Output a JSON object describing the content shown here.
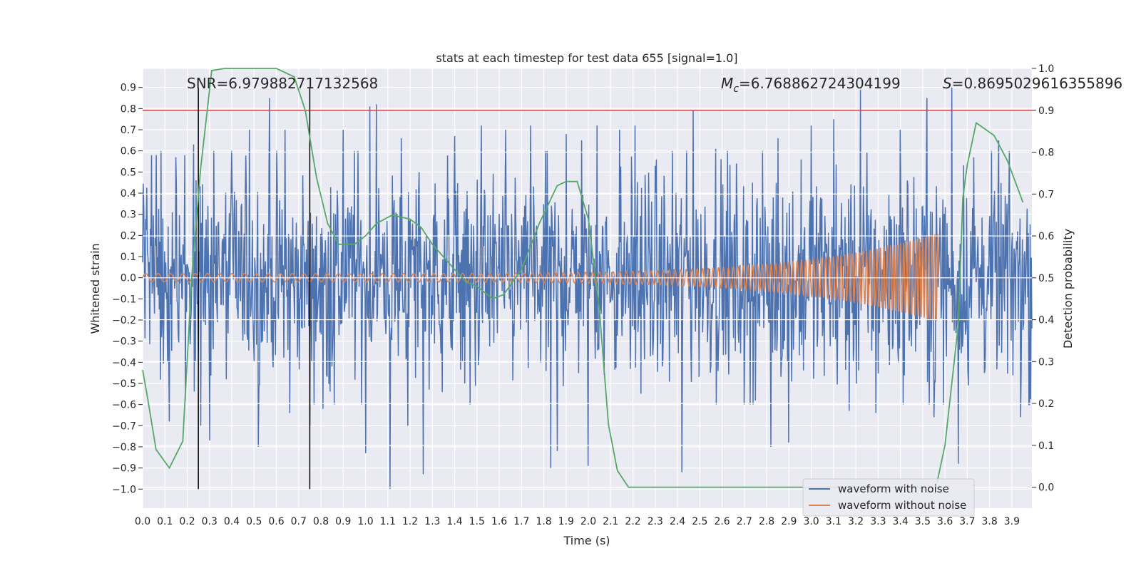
{
  "chart_data": {
    "type": "line",
    "title": "stats at each timestep for test data 655 [signal=1.0]",
    "xlabel": "Time (s)",
    "ylabel": "Whitened strain",
    "y2label": "Detection probability",
    "xlim": [
      0.0,
      3.99
    ],
    "ylim": [
      -1.09,
      0.99
    ],
    "y2lim": [
      -0.05,
      1.0
    ],
    "xticks": [
      "0.0",
      "0.1",
      "0.2",
      "0.3",
      "0.4",
      "0.5",
      "0.6",
      "0.7",
      "0.8",
      "0.9",
      "1.0",
      "1.1",
      "1.2",
      "1.3",
      "1.4",
      "1.5",
      "1.6",
      "1.7",
      "1.8",
      "1.9",
      "2.0",
      "2.1",
      "2.2",
      "2.3",
      "2.4",
      "2.5",
      "2.6",
      "2.7",
      "2.8",
      "2.9",
      "3.0",
      "3.1",
      "3.2",
      "3.3",
      "3.4",
      "3.5",
      "3.6",
      "3.7",
      "3.8",
      "3.9"
    ],
    "yticks": [
      "0.9",
      "0.8",
      "0.7",
      "0.6",
      "0.5",
      "0.4",
      "0.3",
      "0.2",
      "0.1",
      "0.0",
      "−0.1",
      "−0.2",
      "−0.3",
      "−0.4",
      "−0.5",
      "−0.6",
      "−0.7",
      "−0.8",
      "−0.9",
      "−1.0"
    ],
    "y2ticks": [
      "1.0",
      "0.9",
      "0.8",
      "0.7",
      "0.6",
      "0.5",
      "0.4",
      "0.3",
      "0.2",
      "0.1",
      "0.0"
    ],
    "annotations": {
      "snr": "SNR=6.979882717132568",
      "mc_symbol": "M",
      "mc_sub": "c",
      "mc_value": "=6.768862724304199",
      "s_symbol": "S",
      "s_value": "=0.8695029616355896"
    },
    "threshold": {
      "value": 0.9,
      "axis": "y2",
      "color": "#c44e52"
    },
    "vlines": [
      0.25,
      0.75
    ],
    "series": [
      {
        "name": "waveform with noise",
        "color": "#4c72b0",
        "kind": "noise",
        "spread": 0.25,
        "peaks": [
          [
            0.04,
            0.58
          ],
          [
            0.06,
            0.58
          ],
          [
            0.12,
            -0.68
          ],
          [
            0.15,
            0.57
          ],
          [
            0.19,
            0.58
          ],
          [
            0.23,
            0.63
          ],
          [
            0.26,
            -0.7
          ],
          [
            0.3,
            -0.77
          ],
          [
            0.32,
            0.6
          ],
          [
            0.4,
            0.6
          ],
          [
            0.48,
            0.7
          ],
          [
            0.52,
            -0.8
          ],
          [
            0.57,
            0.85
          ],
          [
            0.64,
            0.7
          ],
          [
            0.66,
            -0.64
          ],
          [
            0.75,
            -0.7
          ],
          [
            0.81,
            -0.62
          ],
          [
            0.86,
            -0.6
          ],
          [
            0.9,
            0.7
          ],
          [
            0.95,
            0.6
          ],
          [
            1.0,
            -0.83
          ],
          [
            1.02,
            0.81
          ],
          [
            1.05,
            0.82
          ],
          [
            1.11,
            -1.0
          ],
          [
            1.16,
            0.66
          ],
          [
            1.19,
            -0.7
          ],
          [
            1.24,
            0.5
          ],
          [
            1.26,
            -0.93
          ],
          [
            1.4,
            0.67
          ],
          [
            1.47,
            -0.6
          ],
          [
            1.52,
            0.72
          ],
          [
            1.63,
            0.7
          ],
          [
            1.74,
            0.72
          ],
          [
            1.83,
            -0.9
          ],
          [
            1.86,
            -0.82
          ],
          [
            1.9,
            0.68
          ],
          [
            1.97,
            0.65
          ],
          [
            2.0,
            -0.89
          ],
          [
            2.04,
            0.72
          ],
          [
            2.14,
            0.7
          ],
          [
            2.21,
            0.72
          ],
          [
            2.42,
            -0.92
          ],
          [
            2.44,
            0.6
          ],
          [
            2.47,
            0.79
          ],
          [
            2.57,
            0.61
          ],
          [
            2.7,
            -0.6
          ],
          [
            2.82,
            -0.8
          ],
          [
            2.85,
            0.66
          ],
          [
            2.9,
            -0.78
          ],
          [
            3.0,
            0.72
          ],
          [
            3.1,
            0.75
          ],
          [
            3.17,
            -0.63
          ],
          [
            3.22,
            0.89
          ],
          [
            3.29,
            -0.64
          ],
          [
            3.4,
            0.7
          ],
          [
            3.52,
            0.85
          ],
          [
            3.55,
            -0.66
          ],
          [
            3.63,
            0.9
          ],
          [
            3.66,
            -0.88
          ],
          [
            3.73,
            0.57
          ],
          [
            3.84,
            0.65
          ],
          [
            3.89,
            0.6
          ],
          [
            3.94,
            -0.66
          ],
          [
            3.98,
            -0.6
          ]
        ]
      },
      {
        "name": "waveform without noise",
        "color": "#dd8452",
        "kind": "chirp",
        "t_start": 0.0,
        "t_merge": 3.57,
        "t_end": 3.99,
        "f_start": 18,
        "f_end": 75,
        "amp_start": 0.02,
        "amp_end": 0.21
      },
      {
        "name": "detection probability",
        "color": "#55a868",
        "axis": "y2",
        "x": [
          0.0,
          0.02,
          0.06,
          0.12,
          0.18,
          0.22,
          0.26,
          0.31,
          0.37,
          0.5,
          0.6,
          0.68,
          0.73,
          0.78,
          0.83,
          0.88,
          0.95,
          1.0,
          1.05,
          1.12,
          1.2,
          1.25,
          1.3,
          1.35,
          1.4,
          1.45,
          1.5,
          1.57,
          1.62,
          1.7,
          1.78,
          1.86,
          1.9,
          1.95,
          2.0,
          2.05,
          2.09,
          2.13,
          2.18,
          2.22,
          2.6,
          3.0,
          3.56,
          3.6,
          3.66,
          3.68,
          3.7,
          3.74,
          3.82,
          3.88,
          3.95
        ],
        "values": [
          0.28,
          0.22,
          0.09,
          0.046,
          0.11,
          0.5,
          0.76,
          0.995,
          1.0,
          1.0,
          1.0,
          0.98,
          0.9,
          0.74,
          0.63,
          0.58,
          0.58,
          0.6,
          0.63,
          0.65,
          0.64,
          0.62,
          0.58,
          0.55,
          0.52,
          0.49,
          0.48,
          0.45,
          0.46,
          0.52,
          0.63,
          0.72,
          0.73,
          0.73,
          0.64,
          0.42,
          0.15,
          0.04,
          0.0,
          0.0,
          0.0,
          0.0,
          0.0,
          0.1,
          0.39,
          0.69,
          0.77,
          0.87,
          0.84,
          0.78,
          0.68
        ]
      }
    ],
    "legend": [
      "waveform with noise",
      "waveform without noise"
    ],
    "legend_loc": "lower-right"
  }
}
